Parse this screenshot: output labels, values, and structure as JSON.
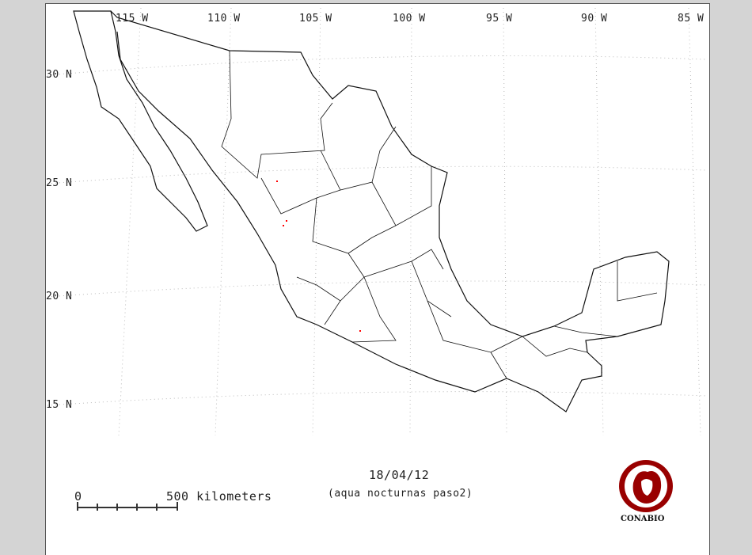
{
  "map": {
    "longitude_labels": [
      "115 W",
      "110 W",
      "105 W",
      "100 W",
      "95 W",
      "90 W",
      "85 W"
    ],
    "latitude_labels": [
      "30 N",
      "25 N",
      "20 N",
      "15 N"
    ],
    "date": "18/04/12",
    "subtitle": "(aqua nocturnas paso2)",
    "scale_bar": {
      "start_label": "0",
      "end_label": "500 kilometers"
    },
    "logo_text": "CONABIO",
    "colors": {
      "outline": "#000000",
      "hotspot": "#ff0000",
      "logo": "#990000",
      "background": "#d4d4d4"
    },
    "hotspots_count_shown": 4
  }
}
